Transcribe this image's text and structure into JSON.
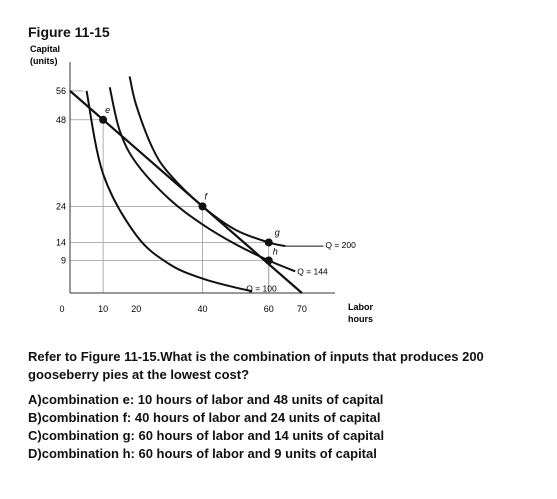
{
  "figure_title": "Figure 11-15",
  "chart_data": {
    "type": "line",
    "ylabel_line1": "Capital",
    "ylabel_line2": "(units)",
    "xlabel_line1": "Labor",
    "xlabel_line2": "hours",
    "xlim": [
      0,
      80
    ],
    "ylim": [
      0,
      64
    ],
    "x_ticks": [
      0,
      10,
      20,
      40,
      60,
      70
    ],
    "y_ticks": [
      9,
      14,
      24,
      48,
      56
    ],
    "isoquants": [
      {
        "label": "Q = 100",
        "points": [
          [
            5,
            56
          ],
          [
            10,
            33
          ],
          [
            20,
            16
          ],
          [
            30,
            8
          ],
          [
            40,
            4
          ],
          [
            50,
            1.5
          ],
          [
            55,
            0.5
          ]
        ]
      },
      {
        "label": "Q = 144",
        "points": [
          [
            12,
            57
          ],
          [
            15,
            45
          ],
          [
            20,
            36
          ],
          [
            30,
            26
          ],
          [
            40,
            19
          ],
          [
            50,
            13.5
          ],
          [
            60,
            9
          ],
          [
            68,
            6
          ]
        ]
      },
      {
        "label": "Q = 200",
        "points": [
          [
            18,
            60
          ],
          [
            20,
            52
          ],
          [
            25,
            40
          ],
          [
            30,
            33
          ],
          [
            40,
            24
          ],
          [
            50,
            17.5
          ],
          [
            60,
            14
          ],
          [
            65,
            13
          ]
        ]
      }
    ],
    "isocost": {
      "points": [
        [
          0,
          56
        ],
        [
          70,
          0
        ]
      ]
    },
    "combinations": [
      {
        "label": "e",
        "x": 10,
        "y": 48
      },
      {
        "label": "f",
        "x": 40,
        "y": 24
      },
      {
        "label": "g",
        "x": 60,
        "y": 14
      },
      {
        "label": "h",
        "x": 60,
        "y": 9
      }
    ]
  },
  "question": "Refer to Figure 11-15.What is the combination of inputs that produces 200 gooseberry pies at the lowest cost?",
  "answers": [
    "A)combination e: 10 hours of labor and 48 units of capital",
    "B)combination f: 40 hours of labor and 24 units of capital",
    "C)combination g: 60 hours of labor and 14 units of capital",
    "D)combination h: 60 hours of labor and 9 units of capital"
  ]
}
